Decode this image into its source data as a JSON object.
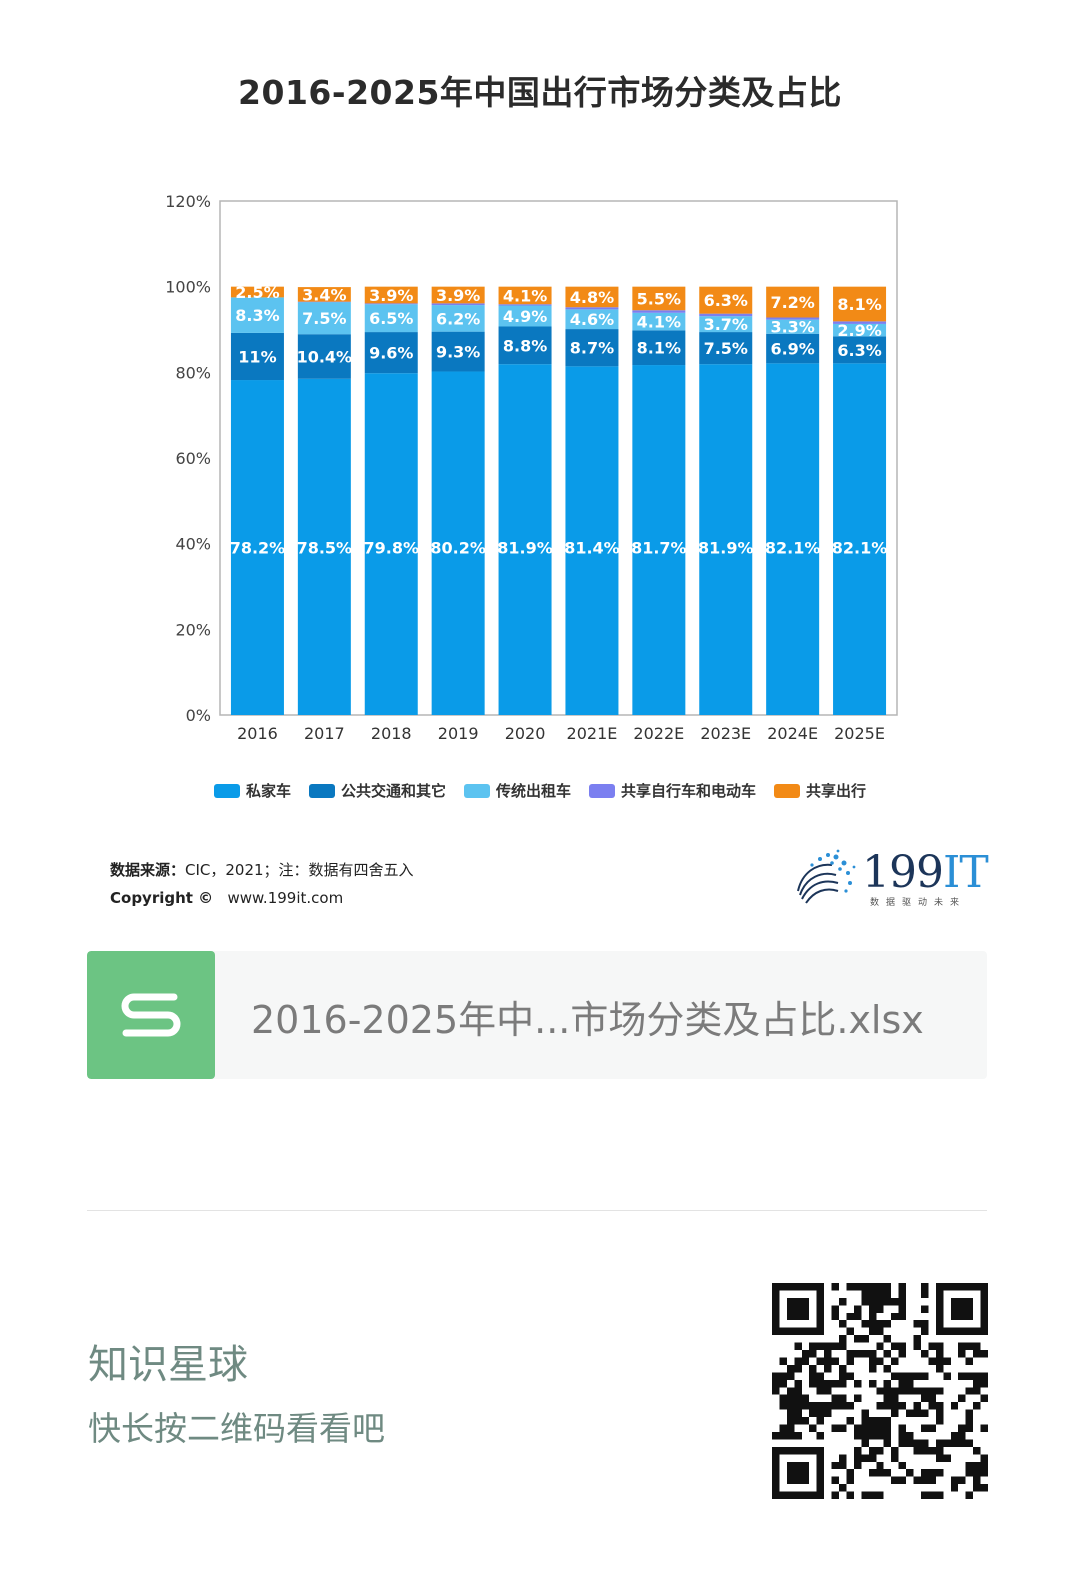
{
  "chart_data": {
    "type": "bar",
    "stacked": true,
    "title": "2016-2025年中国出行市场分类及占比",
    "categories": [
      "2016",
      "2017",
      "2018",
      "2019",
      "2020",
      "2021E",
      "2022E",
      "2023E",
      "2024E",
      "2025E"
    ],
    "series": [
      {
        "name": "私家车",
        "color": "#0a9be8",
        "values": [
          78.2,
          78.5,
          79.8,
          80.2,
          81.9,
          81.4,
          81.7,
          81.9,
          82.1,
          82.1
        ],
        "labels": [
          "78.2%",
          "78.5%",
          "79.8%",
          "80.2%",
          "81.9%",
          "81.4%",
          "81.7%",
          "81.9%",
          "82.1%",
          "82.1%"
        ]
      },
      {
        "name": "公共交通和其它",
        "color": "#0a78c0",
        "values": [
          11,
          10.4,
          9.6,
          9.3,
          8.8,
          8.7,
          8.1,
          7.5,
          6.9,
          6.3
        ],
        "labels": [
          "11%",
          "10.4%",
          "9.6%",
          "9.3%",
          "8.8%",
          "8.7%",
          "8.1%",
          "7.5%",
          "6.9%",
          "6.3%"
        ]
      },
      {
        "name": "传统出租车",
        "color": "#5cc3f0",
        "values": [
          8.3,
          7.5,
          6.5,
          6.2,
          4.9,
          4.6,
          4.1,
          3.7,
          3.3,
          2.9
        ],
        "labels": [
          "8.3%",
          "7.5%",
          "6.5%",
          "6.2%",
          "4.9%",
          "4.6%",
          "4.1%",
          "3.7%",
          "3.3%",
          "2.9%"
        ]
      },
      {
        "name": "共享自行车和电动车",
        "color": "#7b7ff0",
        "values": [
          0,
          0.1,
          0.2,
          0.4,
          0.3,
          0.5,
          0.6,
          0.6,
          0.5,
          0.6
        ],
        "labels": [
          "",
          "",
          "",
          "",
          "",
          "",
          "",
          "",
          "",
          ""
        ]
      },
      {
        "name": "共享出行",
        "color": "#f28a16",
        "values": [
          2.5,
          3.4,
          3.9,
          3.9,
          4.1,
          4.8,
          5.5,
          6.3,
          7.2,
          8.1
        ],
        "labels": [
          "2.5%",
          "3.4%",
          "3.9%",
          "3.9%",
          "4.1%",
          "4.8%",
          "5.5%",
          "6.3%",
          "7.2%",
          "8.1%"
        ]
      }
    ],
    "ylim": [
      0,
      120
    ],
    "yticks": [
      "0%",
      "20%",
      "40%",
      "60%",
      "80%",
      "100%",
      "120%"
    ],
    "xlabel": "",
    "ylabel": "",
    "legend_position": "bottom",
    "grid": false
  },
  "source": {
    "label": "数据来源：",
    "text": "CIC，2021；注：数据有四舍五入",
    "copyright": "Copyright ©",
    "url": "www.199it.com"
  },
  "logo": {
    "text_main": "199",
    "text_accent": "IT",
    "tagline": "数据驱动未来"
  },
  "file_card": {
    "icon_letter": "S",
    "file_name": "2016-2025年中...市场分类及占比.xlsx"
  },
  "footer": {
    "title": "知识星球",
    "subtitle": "快长按二维码看看吧"
  },
  "colors": {
    "file_icon": "#6cc483",
    "footer_text": "#6f8a82"
  }
}
